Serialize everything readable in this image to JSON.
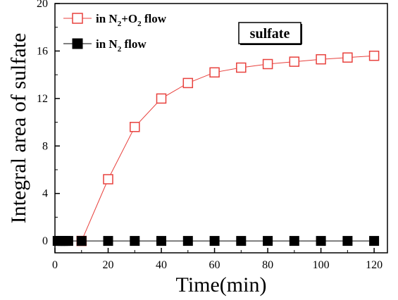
{
  "chart_data": {
    "type": "line",
    "title": "",
    "xlabel": "Time(min)",
    "ylabel": "Integral area of sulfate",
    "xlim": [
      0,
      125
    ],
    "ylim": [
      -1,
      20
    ],
    "x_ticks": [
      0,
      20,
      40,
      60,
      80,
      100,
      120
    ],
    "y_ticks": [
      0,
      4,
      8,
      12,
      16,
      20
    ],
    "legend_position": "top-left",
    "annotation": "sulfate",
    "series": [
      {
        "name_parts": [
          "in N",
          "2",
          "+O",
          "2",
          " flow"
        ],
        "marker": "open-square",
        "color": "#e8413d",
        "x": [
          10,
          20,
          30,
          40,
          50,
          60,
          70,
          80,
          90,
          100,
          110,
          120
        ],
        "y": [
          0,
          5.2,
          9.6,
          12.0,
          13.3,
          14.2,
          14.6,
          14.9,
          15.1,
          15.3,
          15.45,
          15.6
        ]
      },
      {
        "name_parts": [
          "in N",
          "2",
          " flow"
        ],
        "marker": "filled-square",
        "color": "#000000",
        "x": [
          1,
          2,
          3,
          4,
          5,
          10,
          20,
          30,
          40,
          50,
          60,
          70,
          80,
          90,
          100,
          110,
          120
        ],
        "y": [
          0,
          0,
          0,
          0,
          0,
          0,
          0,
          0,
          0,
          0,
          0,
          0,
          0,
          0,
          0,
          0,
          0
        ]
      }
    ]
  }
}
